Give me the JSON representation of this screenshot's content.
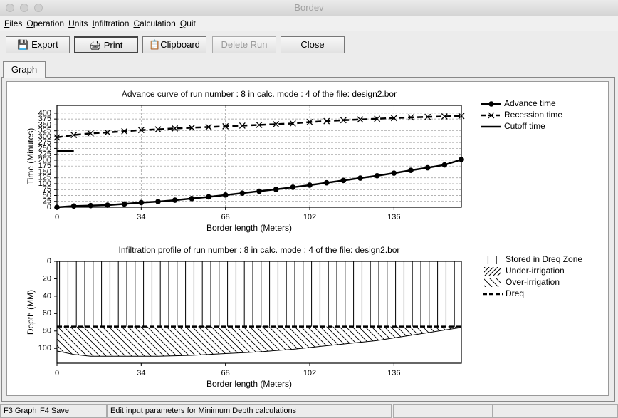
{
  "window": {
    "title": "Bordev"
  },
  "menu": [
    "Files",
    "Operation",
    "Units",
    "Infiltration",
    "Calculation",
    "Quit"
  ],
  "toolbar": [
    "Export",
    "Print",
    "Clipboard",
    "Delete Run",
    "Close"
  ],
  "tab": "Graph",
  "status": [
    "F3 Graph",
    "F4 Save",
    "Edit input parameters for Minimum Depth calculations"
  ],
  "chart_data": [
    {
      "type": "line",
      "title": "Advance curve of run number : 8 in calc. mode : 4 of the file: design2.bor",
      "x_label": "Border length (Meters)",
      "y_label": "Time  (Minutes)",
      "xlim": [
        0,
        163.2
      ],
      "ylim": [
        0,
        433
      ],
      "xticks": [
        0,
        34,
        68,
        102,
        136
      ],
      "yticks": [
        0,
        25,
        50,
        75,
        100,
        125,
        150,
        175,
        200,
        225,
        250,
        275,
        300,
        325,
        350,
        375,
        400
      ],
      "grid": true,
      "legend": "right",
      "x": [
        0,
        6.8,
        13.6,
        20.4,
        27.2,
        34,
        40.8,
        47.6,
        54.4,
        61.2,
        68,
        74.8,
        81.6,
        88.4,
        95.2,
        102,
        108.8,
        115.6,
        122.4,
        129.2,
        136,
        142.8,
        149.6,
        156.4,
        163.2
      ],
      "series": [
        {
          "name": "Advance time",
          "color": "#000000",
          "marker": "circle",
          "dash": false,
          "values": [
            0,
            5,
            7,
            9,
            14,
            20,
            24,
            30,
            37,
            44,
            52,
            60,
            68,
            76,
            85,
            94,
            104,
            114,
            124,
            134,
            145,
            157,
            168,
            180,
            203
          ]
        },
        {
          "name": "Recession time",
          "color": "#000000",
          "marker": "x",
          "dash": true,
          "values": [
            297,
            307,
            314,
            318,
            323,
            328,
            331,
            335,
            338,
            341,
            344,
            347,
            350,
            353,
            356,
            362,
            366,
            370,
            373,
            376,
            379,
            382,
            384,
            386,
            388
          ]
        },
        {
          "name": "Cutoff time",
          "color": "#000000",
          "marker": "none",
          "dash": false,
          "values": [
            240,
            240,
            null,
            null,
            null,
            null,
            null,
            null,
            null,
            null,
            null,
            null,
            null,
            null,
            null,
            null,
            null,
            null,
            null,
            null,
            null,
            null,
            null,
            null,
            null
          ]
        }
      ]
    },
    {
      "type": "infiltration",
      "title": "Infiltration profile of run number : 8 in calc. mode : 4 of the file: design2.bor",
      "x_label": "Border length (Meters)",
      "y_label": "Depth  (MM)",
      "xlim": [
        0,
        163.2
      ],
      "ylim": [
        0,
        117
      ],
      "yinvert": true,
      "xticks": [
        0,
        34,
        68,
        102,
        136
      ],
      "yticks": [
        0,
        20,
        40,
        60,
        80,
        100
      ],
      "grid": false,
      "legend": "right",
      "x": [
        0,
        6.8,
        13.6,
        20.4,
        27.2,
        34,
        40.8,
        47.6,
        54.4,
        61.2,
        68,
        74.8,
        81.6,
        88.4,
        95.2,
        102,
        108.8,
        115.6,
        122.4,
        129.2,
        136,
        142.8,
        149.6,
        156.4,
        163.2
      ],
      "values": [
        103,
        107,
        109,
        109,
        109,
        109,
        109,
        108.5,
        108,
        107,
        106,
        105,
        104,
        102.5,
        101,
        99,
        97,
        95,
        93,
        91,
        88,
        85,
        82,
        79,
        76
      ],
      "series": [
        {
          "name": "Stored in Dreq Zone",
          "pattern": "vertical"
        },
        {
          "name": "Under-irrigation",
          "pattern": "diagonal"
        },
        {
          "name": "Over-irrigation",
          "pattern": "backdiagonal"
        },
        {
          "name": "Dreq",
          "value": 75,
          "dash": true
        }
      ]
    }
  ]
}
